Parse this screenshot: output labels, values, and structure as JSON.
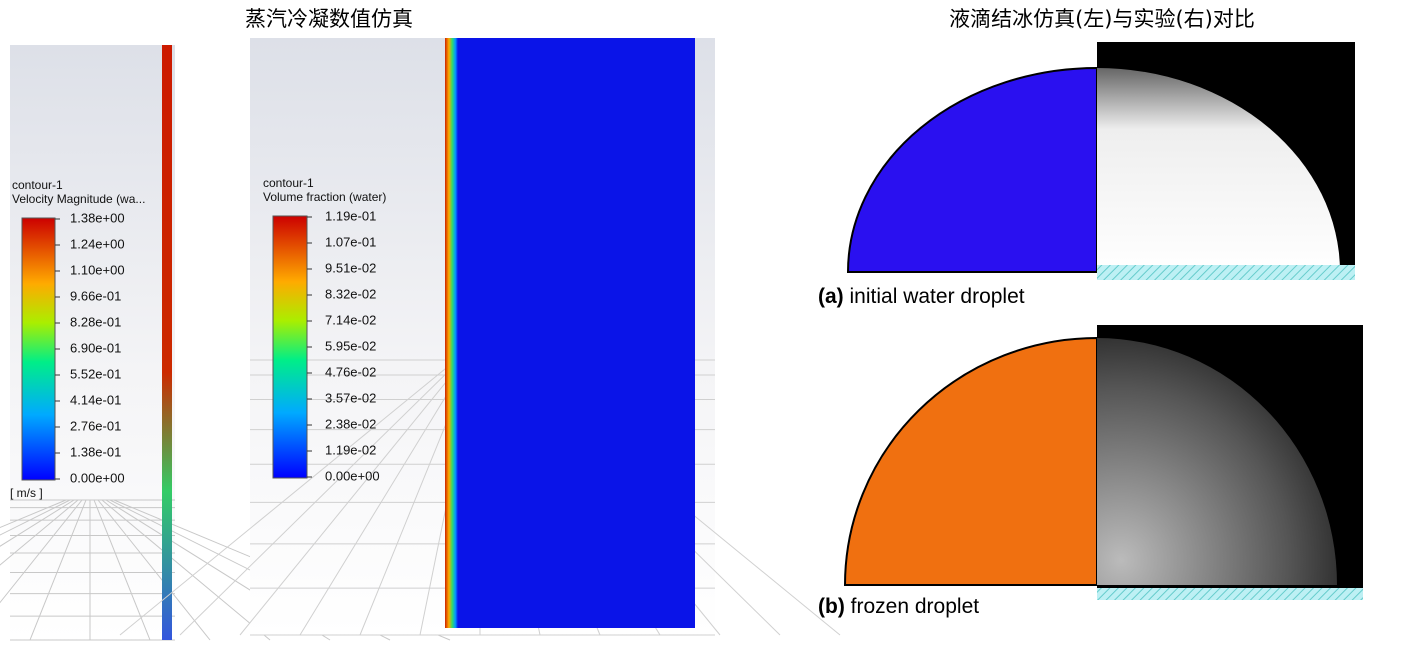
{
  "velocity_panel": {
    "legend_title": "contour-1",
    "legend_subtitle": "Velocity Magnitude (wa...",
    "ticks": [
      "1.38e+00",
      "1.24e+00",
      "1.10e+00",
      "9.66e-01",
      "8.28e-01",
      "6.90e-01",
      "5.52e-01",
      "4.14e-01",
      "2.76e-01",
      "1.38e-01",
      "0.00e+00"
    ],
    "unit": "[ m/s ]"
  },
  "condensation_panel": {
    "title": "蒸汽冷凝数值仿真",
    "legend_title": "contour-1",
    "legend_subtitle": "Volume fraction (water)",
    "ticks": [
      "1.19e-01",
      "1.07e-01",
      "9.51e-02",
      "8.32e-02",
      "7.14e-02",
      "5.95e-02",
      "4.76e-02",
      "3.57e-02",
      "2.38e-02",
      "1.19e-02",
      "0.00e+00"
    ]
  },
  "icing_panel": {
    "title": "液滴结冰仿真(左)与实验(右)对比",
    "captions": [
      {
        "tag": "(a)",
        "text": "initial water droplet"
      },
      {
        "tag": "(b)",
        "text": "frozen droplet"
      }
    ]
  }
}
